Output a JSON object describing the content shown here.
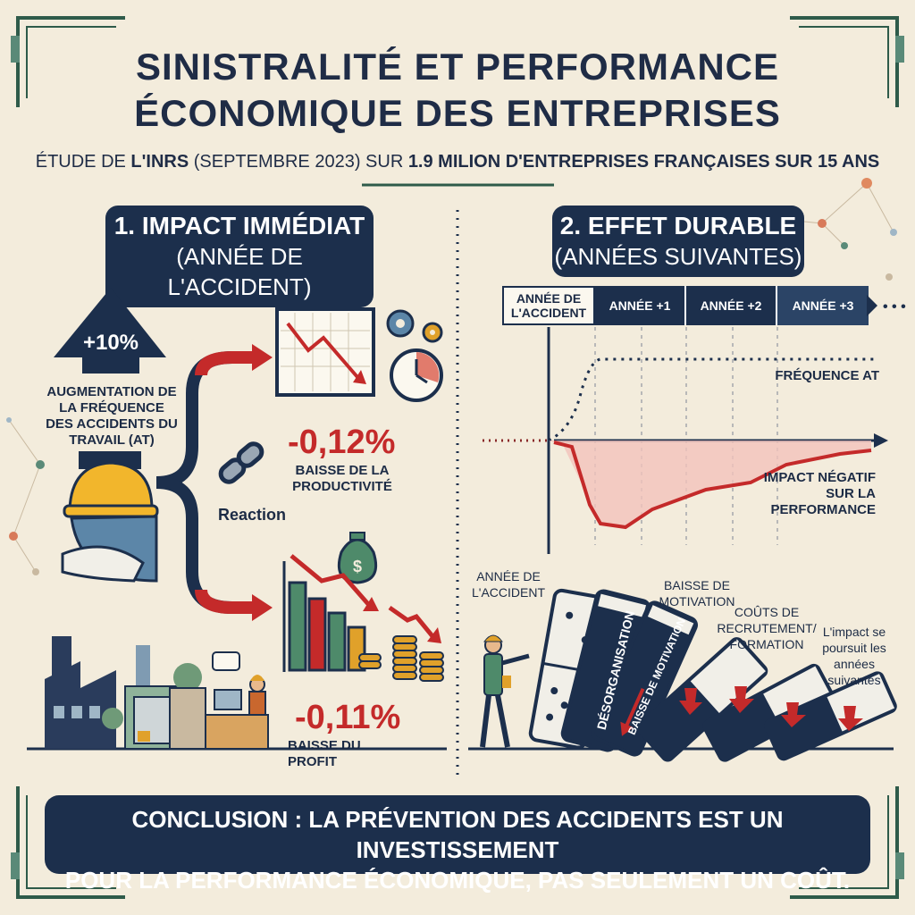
{
  "header": {
    "title_line1": "SINISTRALITÉ ET PERFORMANCE",
    "title_line2": "ÉCONOMIQUE DES ENTREPRISES",
    "subtitle_prefix": "ÉTUDE DE ",
    "subtitle_inrs": "L'INRS",
    "subtitle_mid": " (SEPTEMBRE 2023) SUR ",
    "subtitle_count": "1.9 MILION D'ENTREPRISES FRANÇAISES SUR 15 ANS"
  },
  "section1": {
    "title": "1. IMPACT IMMÉDIAT",
    "subtitle": "(ANNÉE DE L'ACCIDENT)",
    "arrow_value": "+10%",
    "arrow_label": "AUGMENTATION DE LA FRÉQUENCE DES ACCIDENTS DU TRAVAIL (AT)",
    "reaction_label": "Reaction",
    "productivity_value": "-0,12%",
    "productivity_label": "BAISSE DE LA PRODUCTIVITÉ",
    "profit_value": "-0,11%",
    "profit_label": "BAISSE DU PROFIT"
  },
  "section2": {
    "title": "2. EFFET DURABLE",
    "subtitle": "(ANNÉES SUIVANTES)",
    "timeline": [
      "ANNÉE DE L'ACCIDENT",
      "ANNÉE +1",
      "ANNÉE +2",
      "ANNÉE +3"
    ],
    "freq_label": "FRÉQUENCE AT",
    "impact_label": "IMPACT NÉGATIF SUR LA PERFORMANCE",
    "domino_year_label": "ANNÉE DE L'ACCIDENT",
    "domino_labels": [
      "DÉSORGANISATION",
      "BAISSE DE MOTIVATION"
    ],
    "motivation_label": "BAISSE DE MOTIVATION",
    "costs_label": "COÛTS DE RECRUTEMENT/ FORMATION",
    "continues_label": "L'impact se poursuit les années suivantes"
  },
  "conclusion": {
    "line1": "CONCLUSION : LA PRÉVENTION DES ACCIDENTS EST UN INVESTISSEMENT",
    "line2": "POUR LA PERFORMANCE ÉCONOMIQUE, PAS SEULEMENT UN COÛT."
  },
  "colors": {
    "navy": "#1c2f4c",
    "red": "#c42a2a",
    "green": "#4e8a6a",
    "background": "#f3ecdc"
  }
}
